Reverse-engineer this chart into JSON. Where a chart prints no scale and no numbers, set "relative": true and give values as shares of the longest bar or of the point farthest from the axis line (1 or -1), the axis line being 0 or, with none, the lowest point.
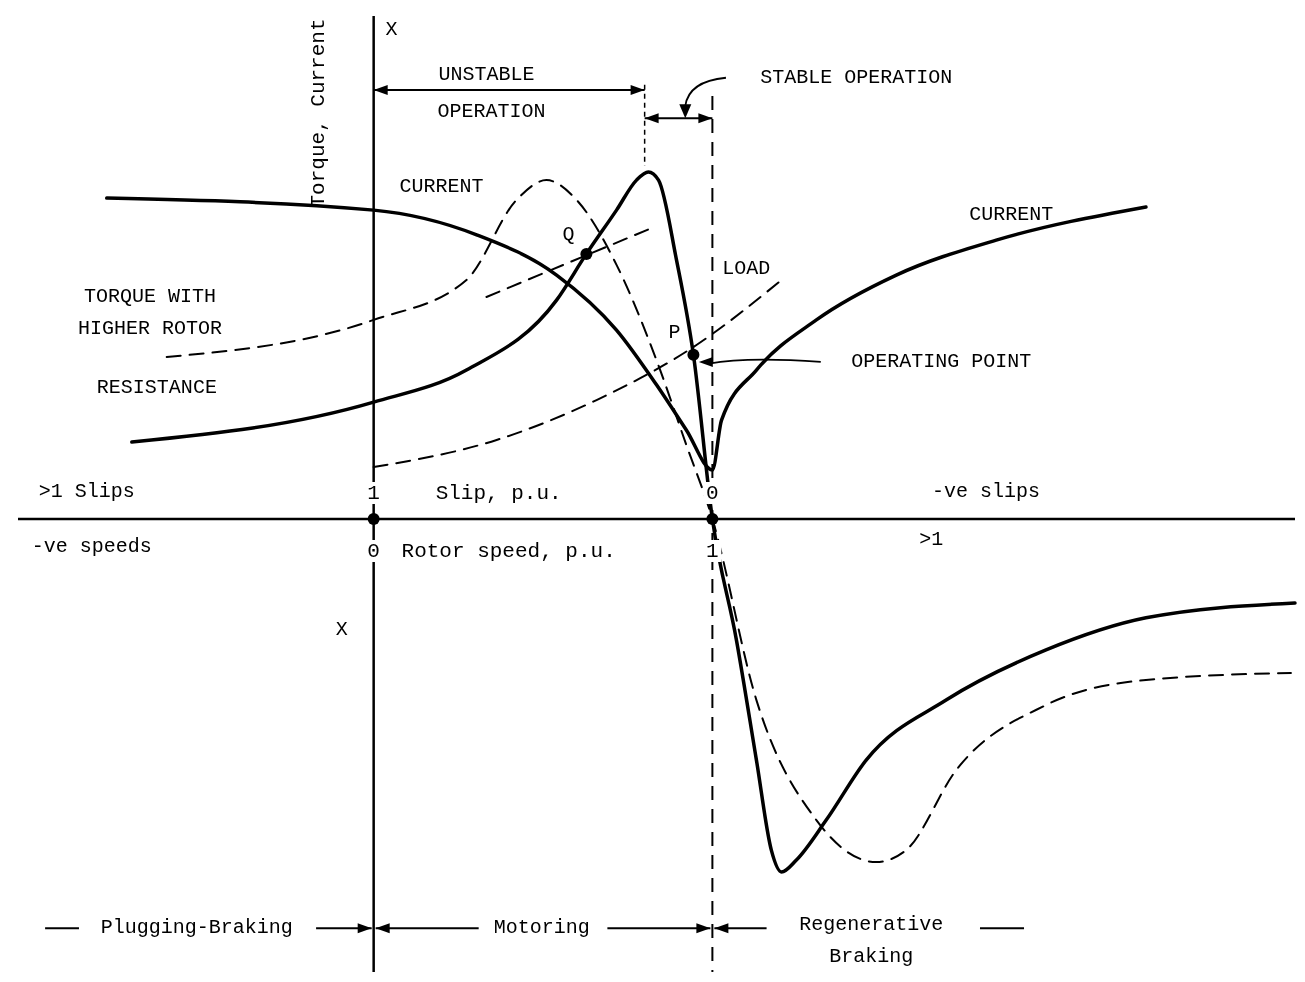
{
  "chart_data": {
    "type": "line",
    "relative": true,
    "xlabel": "Rotor speed, p.u.",
    "x2label": "Slip, p.u.",
    "ylabel": "Torque, Current",
    "xlim": [
      -1.05,
      2.72
    ],
    "xticks": [
      0,
      1
    ],
    "x2lim": [
      2.05,
      -1.72
    ],
    "x2ticks": [
      1,
      0
    ],
    "ref_lines": [
      {
        "axis": "x",
        "value": 1,
        "line_style": "dashed",
        "color": "#000000"
      }
    ],
    "series": [
      {
        "type": "line",
        "color": "#000000",
        "line_style": "solid",
        "x": [
          -0.714,
          0,
          0.274,
          0.54,
          0.628,
          0.717,
          0.776,
          0.811,
          0.841,
          0.894,
          0.944,
          1,
          1.071,
          1.13,
          1.174,
          1.204,
          1.248,
          1.336,
          1.454,
          1.69,
          1.985,
          2.28,
          2.72
        ],
        "values": [
          0.218,
          0.331,
          0.422,
          0.62,
          0.751,
          0.875,
          0.96,
          0.983,
          0.96,
          0.734,
          0.465,
          0,
          -0.343,
          -0.683,
          -0.938,
          -1,
          -0.966,
          -0.853,
          -0.683,
          -0.513,
          -0.371,
          -0.28,
          -0.238
        ]
      },
      {
        "type": "line",
        "color": "#000000",
        "line_style": "dashed",
        "x": [
          -0.611,
          0,
          0.274,
          0.422,
          0.51,
          0.599,
          0.717,
          0.835,
          0.923,
          1,
          1.13,
          1.307,
          1.484,
          1.572,
          1.72,
          1.985,
          2.28,
          2.708
        ],
        "values": [
          0.459,
          0.564,
          0.677,
          0.904,
          0.96,
          0.904,
          0.72,
          0.45,
          0.21,
          0,
          -0.513,
          -0.853,
          -0.972,
          -0.938,
          -0.711,
          -0.527,
          -0.456,
          -0.436
        ]
      },
      {
        "type": "line",
        "color": "#000000",
        "line_style": "solid",
        "x": [
          -0.788,
          0,
          0.304,
          0.54,
          0.717,
          0.835,
          0.923,
          1,
          1.027,
          1.13,
          1.307,
          1.543,
          1.838,
          2.28
        ],
        "values": [
          0.909,
          0.875,
          0.805,
          0.691,
          0.535,
          0.38,
          0.252,
          0.139,
          0.28,
          0.422,
          0.564,
          0.691,
          0.79,
          0.884
        ]
      },
      {
        "type": "line",
        "color": "#000000",
        "line_style": "dashed",
        "x": [
          0,
          0.363,
          0.658,
          0.953,
          1.204
        ],
        "values": [
          0.147,
          0.224,
          0.337,
          0.493,
          0.677
        ]
      },
      {
        "type": "line",
        "color": "#000000",
        "line_style": "dashed",
        "x": [
          0.333,
          0.82
        ],
        "values": [
          0.629,
          0.824
        ]
      },
      {
        "type": "scatter",
        "color": "#000000",
        "marker": "circle",
        "x": [
          0,
          1,
          0.628,
          0.944
        ],
        "values": [
          0,
          0,
          0.751,
          0.465
        ]
      }
    ],
    "annotations": [
      "X",
      "X",
      "UNSTABLE",
      "OPERATION",
      "STABLE OPERATION",
      "CURRENT",
      "CURRENT",
      "TORQUE WITH",
      "HIGHER ROTOR",
      "RESISTANCE",
      "LOAD",
      "OPERATING POINT",
      "Q",
      "P",
      ">1 Slips",
      "-ve slips",
      "-ve speeds",
      ">1",
      "Plugging-Braking",
      "Motoring",
      "Regenerative",
      "Braking"
    ]
  }
}
